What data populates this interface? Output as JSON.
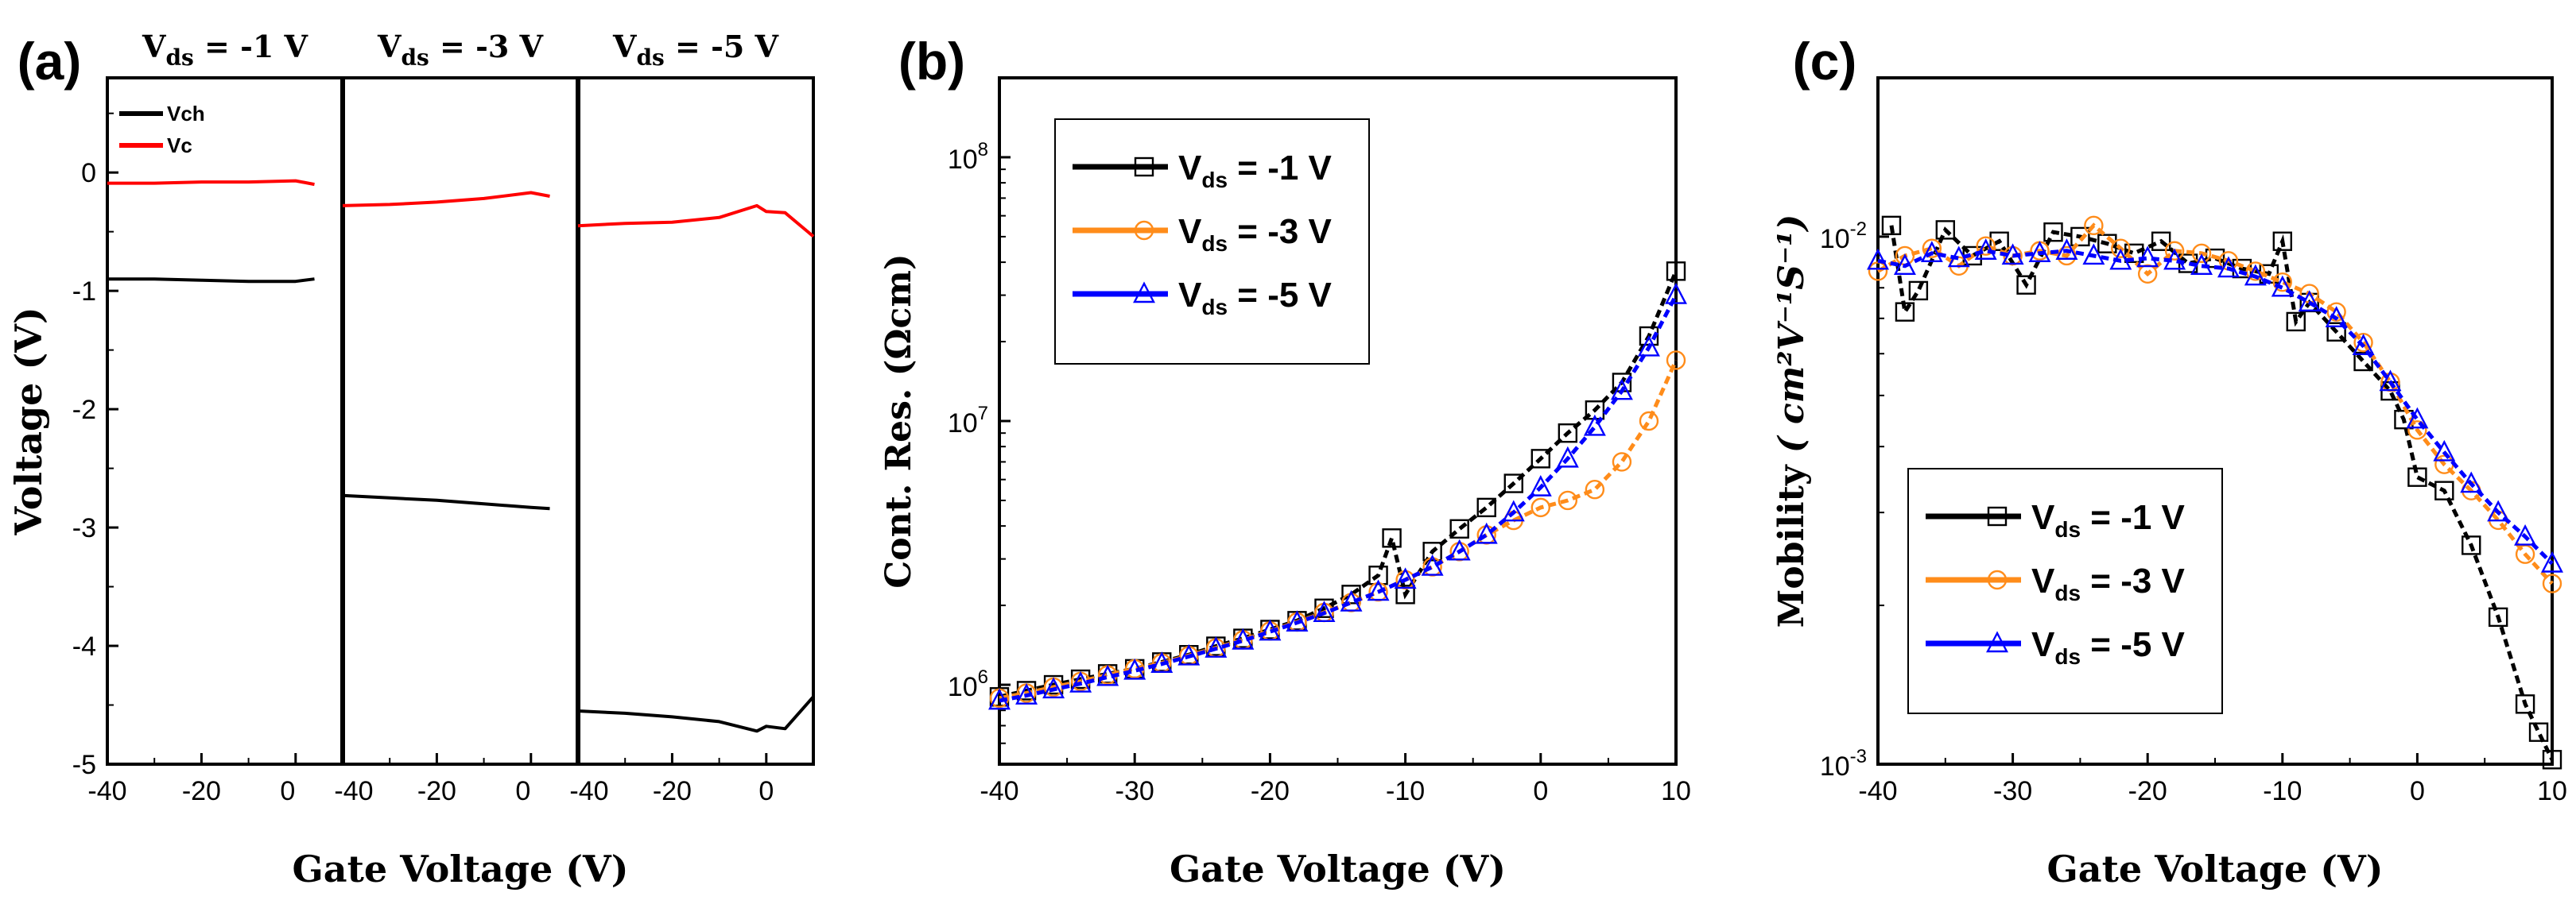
{
  "chart_data": [
    {
      "panel": "(a)",
      "type": "line",
      "ylabel": "Voltage (V)",
      "xlabel": "Gate Voltage (V)",
      "ylim": [
        -5,
        0.8
      ],
      "x_ticks": [
        "-40",
        "-20",
        "0",
        "-40",
        "-20",
        "0",
        "-40",
        "-20",
        "0"
      ],
      "y_ticks": [
        "0",
        "-1",
        "-2",
        "-3",
        "-4",
        "-5"
      ],
      "segments": [
        {
          "label": "V",
          "sub": "ds",
          "value": " = -1 V"
        },
        {
          "label": "V",
          "sub": "ds",
          "value": " = -3 V"
        },
        {
          "label": "V",
          "sub": "ds",
          "value": " = -5 V"
        }
      ],
      "legend": [
        {
          "name": "Vch",
          "color": "#000000"
        },
        {
          "name": "Vc",
          "color": "#ff0000"
        }
      ],
      "series": [
        {
          "name": "Vch",
          "color": "#000000",
          "segments": [
            {
              "x": [
                -40,
                -30,
                -20,
                -10,
                0,
                4
              ],
              "y": [
                -0.9,
                -0.9,
                -0.91,
                -0.92,
                -0.92,
                -0.9
              ]
            },
            {
              "x": [
                -40,
                -30,
                -20,
                -10,
                0,
                4
              ],
              "y": [
                -2.73,
                -2.75,
                -2.77,
                -2.8,
                -2.83,
                -2.84
              ]
            },
            {
              "x": [
                -40,
                -30,
                -20,
                -10,
                -2,
                0,
                4,
                10
              ],
              "y": [
                -4.55,
                -4.57,
                -4.6,
                -4.64,
                -4.72,
                -4.68,
                -4.7,
                -4.43
              ]
            }
          ]
        },
        {
          "name": "Vc",
          "color": "#ff0000",
          "segments": [
            {
              "x": [
                -40,
                -30,
                -20,
                -10,
                0,
                4
              ],
              "y": [
                -0.09,
                -0.09,
                -0.08,
                -0.08,
                -0.07,
                -0.1
              ]
            },
            {
              "x": [
                -40,
                -30,
                -20,
                -10,
                0,
                4
              ],
              "y": [
                -0.28,
                -0.27,
                -0.25,
                -0.22,
                -0.17,
                -0.2
              ]
            },
            {
              "x": [
                -40,
                -30,
                -20,
                -10,
                -2,
                0,
                4,
                10
              ],
              "y": [
                -0.45,
                -0.43,
                -0.42,
                -0.38,
                -0.28,
                -0.33,
                -0.34,
                -0.54
              ]
            }
          ]
        }
      ]
    },
    {
      "panel": "(b)",
      "type": "scatter",
      "ylabel": "Cont. Res. (Ωcm)",
      "xlabel": "Gate Voltage (V)",
      "yscale": "log",
      "xlim": [
        -40,
        10
      ],
      "ylim": [
        500000,
        200000000
      ],
      "x_ticks": [
        "-40",
        "-30",
        "-20",
        "-10",
        "0",
        "10"
      ],
      "y_ticks": [
        {
          "base": "10",
          "exp": "6"
        },
        {
          "base": "10",
          "exp": "7"
        },
        {
          "base": "10",
          "exp": "8"
        }
      ],
      "legend": [
        {
          "label": "V",
          "sub": "ds",
          "value": " = -1 V",
          "color": "#000000",
          "marker": "square"
        },
        {
          "label": "V",
          "sub": "ds",
          "value": " = -3 V",
          "color": "#ff8c1a",
          "marker": "circle"
        },
        {
          "label": "V",
          "sub": "ds",
          "value": " = -5 V",
          "color": "#0000ff",
          "marker": "triangle"
        }
      ],
      "series": [
        {
          "name": "Vds = -1 V",
          "color": "#000000",
          "marker": "square",
          "x": [
            -40,
            -38,
            -36,
            -34,
            -32,
            -30,
            -28,
            -26,
            -24,
            -22,
            -20,
            -18,
            -16,
            -14,
            -12,
            -11,
            -10,
            -8,
            -6,
            -4,
            -2,
            0,
            2,
            4,
            6,
            8,
            10
          ],
          "y": [
            900000,
            950000,
            1000000,
            1050000,
            1100000,
            1150000,
            1220000,
            1300000,
            1400000,
            1500000,
            1620000,
            1750000,
            1950000,
            2200000,
            2600000,
            3600000,
            2200000,
            3200000,
            3900000,
            4700000,
            5800000,
            7200000,
            9000000,
            11000000,
            14000000,
            21000000,
            37000000
          ]
        },
        {
          "name": "Vds = -3 V",
          "color": "#ff8c1a",
          "marker": "circle",
          "x": [
            -40,
            -38,
            -36,
            -34,
            -32,
            -30,
            -28,
            -26,
            -24,
            -22,
            -20,
            -18,
            -16,
            -14,
            -12,
            -10,
            -8,
            -6,
            -4,
            -2,
            0,
            2,
            4,
            6,
            8,
            10
          ],
          "y": [
            890000,
            930000,
            980000,
            1030000,
            1090000,
            1150000,
            1210000,
            1290000,
            1380000,
            1480000,
            1600000,
            1730000,
            1880000,
            2050000,
            2250000,
            2500000,
            2800000,
            3200000,
            3700000,
            4200000,
            4700000,
            5000000,
            5500000,
            7000000,
            10000000,
            17000000
          ]
        },
        {
          "name": "Vds = -5 V",
          "color": "#0000ff",
          "marker": "triangle",
          "x": [
            -40,
            -38,
            -36,
            -34,
            -32,
            -30,
            -28,
            -26,
            -24,
            -22,
            -20,
            -18,
            -16,
            -14,
            -12,
            -10,
            -8,
            -6,
            -4,
            -2,
            0,
            2,
            4,
            6,
            8,
            10
          ],
          "y": [
            870000,
            910000,
            960000,
            1010000,
            1070000,
            1130000,
            1200000,
            1280000,
            1370000,
            1470000,
            1590000,
            1720000,
            1870000,
            2050000,
            2250000,
            2500000,
            2800000,
            3200000,
            3700000,
            4500000,
            5600000,
            7200000,
            9500000,
            13000000,
            19000000,
            30000000
          ]
        }
      ]
    },
    {
      "panel": "(c)",
      "type": "scatter",
      "ylabel": "Mobility",
      "ylabel_unit": "( cm²V⁻¹S⁻¹)",
      "xlabel": "Gate Voltage (V)",
      "yscale": "log",
      "xlim": [
        -40,
        10
      ],
      "ylim": [
        0.001,
        0.02
      ],
      "x_ticks": [
        "-40",
        "-30",
        "-20",
        "-10",
        "0",
        "10"
      ],
      "y_ticks": [
        {
          "base": "10",
          "exp": "-3"
        },
        {
          "base": "10",
          "exp": "-2"
        }
      ],
      "legend": [
        {
          "label": "V",
          "sub": "ds",
          "value": " = -1 V",
          "color": "#000000",
          "marker": "square"
        },
        {
          "label": "V",
          "sub": "ds",
          "value": " = -3 V",
          "color": "#ff8c1a",
          "marker": "circle"
        },
        {
          "label": "V",
          "sub": "ds",
          "value": " = -5 V",
          "color": "#0000ff",
          "marker": "triangle"
        }
      ],
      "series": [
        {
          "name": "Vds = -1 V",
          "color": "#000000",
          "marker": "square",
          "x": [
            -39,
            -38,
            -37,
            -35,
            -33,
            -31,
            -29,
            -27,
            -25,
            -23,
            -21,
            -19,
            -17,
            -15,
            -13,
            -11,
            -10,
            -9,
            -8,
            -6,
            -4,
            -2,
            -1,
            0,
            2,
            4,
            6,
            8,
            9,
            10
          ],
          "y": [
            0.0105,
            0.0072,
            0.0079,
            0.0103,
            0.0092,
            0.0098,
            0.0081,
            0.0102,
            0.01,
            0.0097,
            0.0093,
            0.0098,
            0.0089,
            0.0091,
            0.0087,
            0.0085,
            0.0098,
            0.0069,
            0.0075,
            0.0066,
            0.0058,
            0.0051,
            0.0045,
            0.0035,
            0.0033,
            0.0026,
            0.0019,
            0.0013,
            0.00115,
            0.00102
          ]
        },
        {
          "name": "Vds = -3 V",
          "color": "#ff8c1a",
          "marker": "circle",
          "x": [
            -40,
            -38,
            -36,
            -34,
            -32,
            -30,
            -28,
            -26,
            -24,
            -22,
            -20,
            -18,
            -16,
            -14,
            -12,
            -10,
            -8,
            -6,
            -4,
            -2,
            0,
            2,
            4,
            6,
            8,
            10
          ],
          "y": [
            0.0086,
            0.0092,
            0.0095,
            0.0088,
            0.0096,
            0.0092,
            0.0094,
            0.0092,
            0.0105,
            0.0095,
            0.0085,
            0.0094,
            0.0093,
            0.009,
            0.0086,
            0.0082,
            0.0078,
            0.0072,
            0.0063,
            0.0053,
            0.0043,
            0.0037,
            0.0033,
            0.0029,
            0.0025,
            0.0022
          ]
        },
        {
          "name": "Vds = -5 V",
          "color": "#0000ff",
          "marker": "triangle",
          "x": [
            -40,
            -38,
            -36,
            -34,
            -32,
            -30,
            -28,
            -26,
            -24,
            -22,
            -20,
            -18,
            -16,
            -14,
            -12,
            -10,
            -8,
            -6,
            -4,
            -2,
            0,
            2,
            4,
            6,
            8,
            10
          ],
          "y": [
            0.009,
            0.0088,
            0.0093,
            0.0091,
            0.0094,
            0.0092,
            0.0093,
            0.0094,
            0.0092,
            0.009,
            0.0091,
            0.009,
            0.0088,
            0.0087,
            0.0084,
            0.008,
            0.0075,
            0.007,
            0.0062,
            0.0053,
            0.0045,
            0.0039,
            0.0034,
            0.003,
            0.0027,
            0.0024
          ]
        }
      ]
    }
  ]
}
